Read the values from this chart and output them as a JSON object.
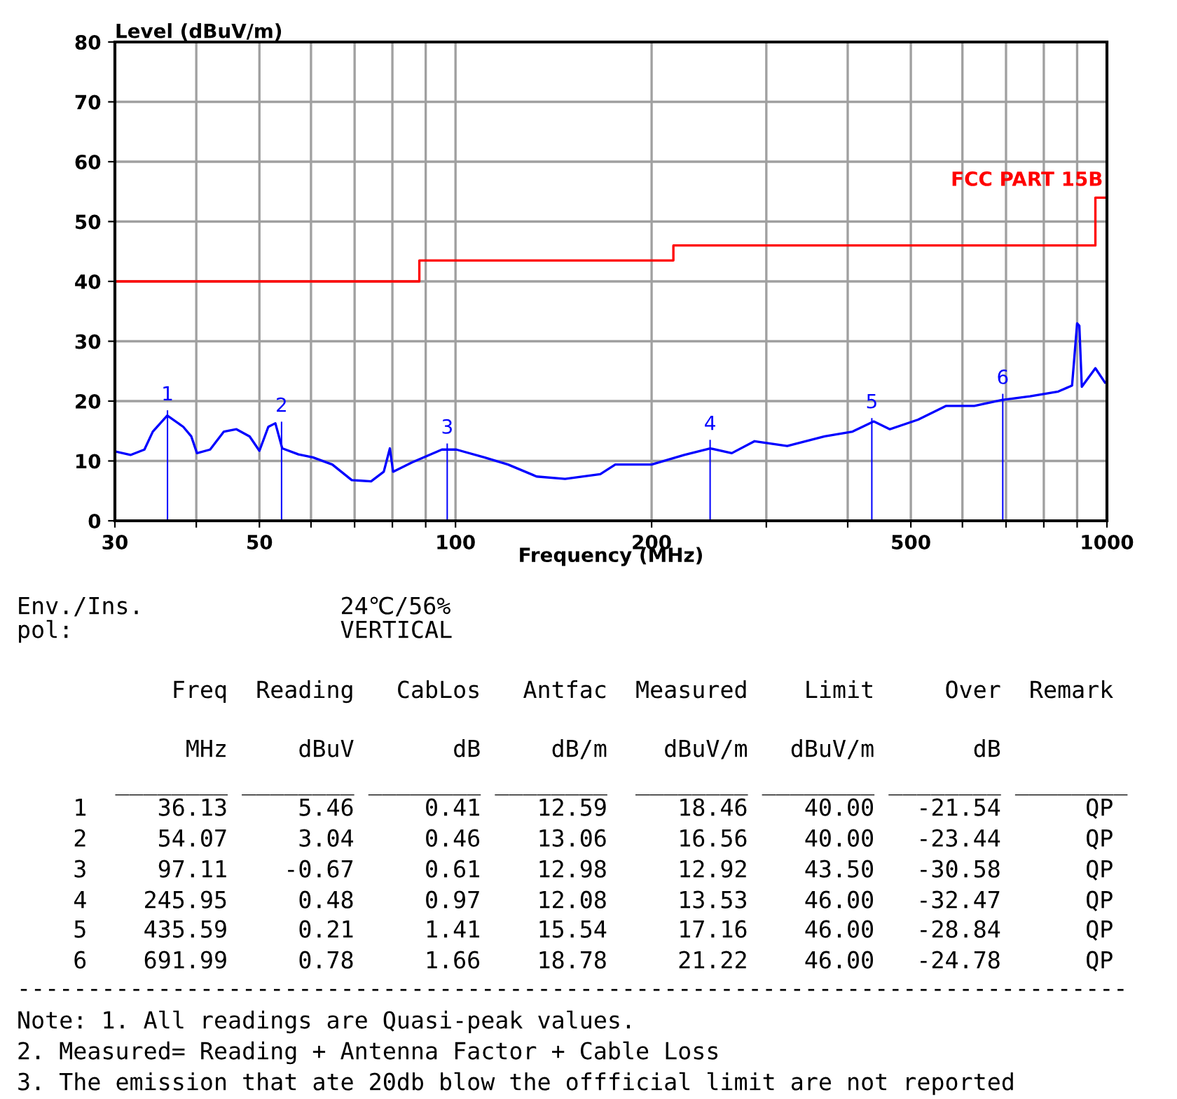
{
  "chart_data": {
    "type": "line",
    "xlabel": "Frequency (MHz)",
    "ylabel": "Level (dBuV/m)",
    "log": "x",
    "xlim": [
      30,
      1000
    ],
    "ylim": [
      0,
      80
    ],
    "xticks": [
      30,
      {
        "value": 40,
        "label": null
      },
      50,
      {
        "value": 60,
        "label": null
      },
      {
        "value": 70,
        "label": null
      },
      {
        "value": 80,
        "label": null
      },
      {
        "value": 90,
        "label": null
      },
      100,
      200,
      {
        "value": 300,
        "label": null
      },
      {
        "value": 400,
        "label": null
      },
      500,
      {
        "value": 600,
        "label": null
      },
      {
        "value": 700,
        "label": null
      },
      {
        "value": 800,
        "label": null
      },
      {
        "value": 900,
        "label": null
      },
      1000
    ],
    "yticks": [
      0,
      10,
      20,
      30,
      40,
      50,
      60,
      70,
      80
    ],
    "grid": true,
    "legend": false,
    "series": [
      {
        "color": "#0000ff",
        "x": [
          30,
          31.7,
          33.3,
          34.3,
          36.1,
          38.2,
          39.3,
          40.1,
          42.0,
          44.1,
          46.1,
          48.3,
          50.0,
          51.6,
          52.9,
          54.2,
          57.4,
          60.4,
          64.7,
          69.3,
          74.2,
          77.6,
          79.3,
          80.2,
          85.9,
          95.3,
          100.3,
          110.7,
          120.4,
          133.2,
          147.3,
          166.8,
          175.9,
          200,
          224.5,
          246,
          265.5,
          287.8,
          323,
          368.6,
          406.9,
          438.6,
          464.3,
          513,
          566.6,
          625.6,
          690,
          762,
          842,
          884,
          900,
          907,
          915,
          960,
          993
        ],
        "values": [
          11.6,
          11.0,
          11.9,
          14.9,
          17.6,
          15.7,
          14.1,
          11.3,
          11.9,
          14.9,
          15.3,
          14.1,
          11.7,
          15.7,
          16.3,
          12.1,
          11.1,
          10.6,
          9.4,
          6.8,
          6.6,
          8.2,
          12.1,
          8.2,
          9.8,
          11.9,
          11.9,
          10.6,
          9.4,
          7.4,
          7.0,
          7.8,
          9.4,
          9.4,
          11.0,
          12.1,
          11.3,
          13.3,
          12.5,
          14.1,
          14.9,
          16.6,
          15.3,
          16.9,
          19.2,
          19.2,
          20.2,
          20.8,
          21.6,
          22.6,
          33.0,
          32.6,
          22.4,
          25.5,
          23.1
        ]
      },
      {
        "type": "step",
        "name": "FCC PART 15B",
        "color": "#ff0000",
        "x": [
          30,
          88,
          216,
          960,
          1000
        ],
        "values": [
          40,
          43.5,
          46,
          54,
          54
        ]
      },
      {
        "type": "bar",
        "color": "#0000ff",
        "x": [
          36.13,
          54.07,
          97.11,
          245.95,
          435.59,
          691.99
        ],
        "values": [
          18.46,
          16.56,
          12.92,
          13.53,
          17.16,
          21.22
        ]
      }
    ],
    "annotations": [
      {
        "text": "1",
        "x": 36.13,
        "y": 18.46
      },
      {
        "text": "2",
        "x": 54.07,
        "y": 16.56
      },
      {
        "text": "3",
        "x": 97.11,
        "y": 12.92
      },
      {
        "text": "4",
        "x": 245.95,
        "y": 13.53
      },
      {
        "text": "5",
        "x": 435.59,
        "y": 17.16
      },
      {
        "text": "6",
        "x": 691.99,
        "y": 21.22
      },
      "Env./Ins.              24℃/56%",
      "pol:                   VERTICAL",
      "           Freq  Reading   CabLos   Antfac  Measured    Limit     Over  Remark",
      "            MHz     dBuV       dB     dB/m    dBuV/m   dBuV/m       dB",
      "       ________ ________ ________ ________  ________ ________ ________ ________",
      "    1     36.13     5.46     0.41    12.59     18.46    40.00   -21.54      QP",
      "    2     54.07     3.04     0.46    13.06     16.56    40.00   -23.44      QP",
      "    3     97.11    -0.67     0.61    12.98     12.92    43.50   -30.58      QP",
      "    4    245.95     0.48     0.97    12.08     13.53    46.00   -32.47      QP",
      "    5    435.59     0.21     1.41    15.54     17.16    46.00   -28.84      QP",
      "    6    691.99     0.78     1.66    18.78     21.22    46.00   -24.78      QP",
      "-------------------------------------------------------------------------------",
      "Note: 1. All readings are Quasi-peak values.",
      "2. Measured= Reading + Antenna Factor + Cable Loss",
      "3. The emission that ate 20db blow the offficial limit are not reported"
    ]
  }
}
